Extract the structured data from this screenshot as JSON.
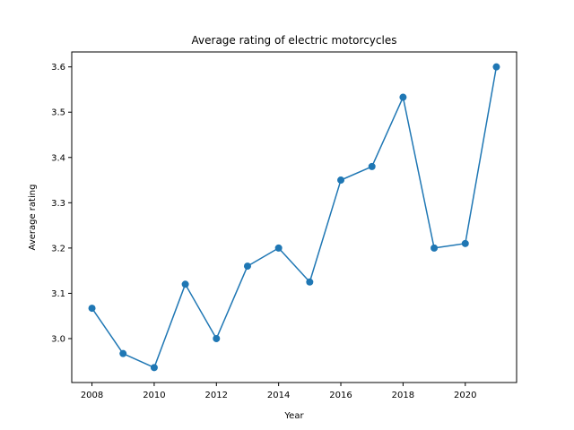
{
  "chart_data": {
    "type": "line",
    "title": "Average rating of electric motorcycles",
    "xlabel": "Year",
    "ylabel": "Average rating",
    "x": [
      2008,
      2009,
      2010,
      2011,
      2012,
      2013,
      2014,
      2015,
      2016,
      2017,
      2018,
      2019,
      2020,
      2021
    ],
    "series": [
      {
        "values": [
          3.067,
          2.967,
          2.936,
          3.12,
          3.0,
          3.16,
          3.2,
          3.125,
          3.35,
          3.38,
          3.533,
          3.2,
          3.21,
          3.6
        ],
        "color": "#1f77b4",
        "marker": "circle"
      }
    ],
    "xlim": [
      2007.35,
      2021.65
    ],
    "ylim": [
      2.903,
      3.633
    ],
    "xticks": [
      2008,
      2010,
      2012,
      2014,
      2016,
      2018,
      2020
    ],
    "yticks": [
      3.0,
      3.1,
      3.2,
      3.3,
      3.4,
      3.5,
      3.6
    ],
    "ytick_labels": [
      "3.0",
      "3.1",
      "3.2",
      "3.3",
      "3.4",
      "3.5",
      "3.6"
    ],
    "grid": false,
    "legend": "none"
  }
}
